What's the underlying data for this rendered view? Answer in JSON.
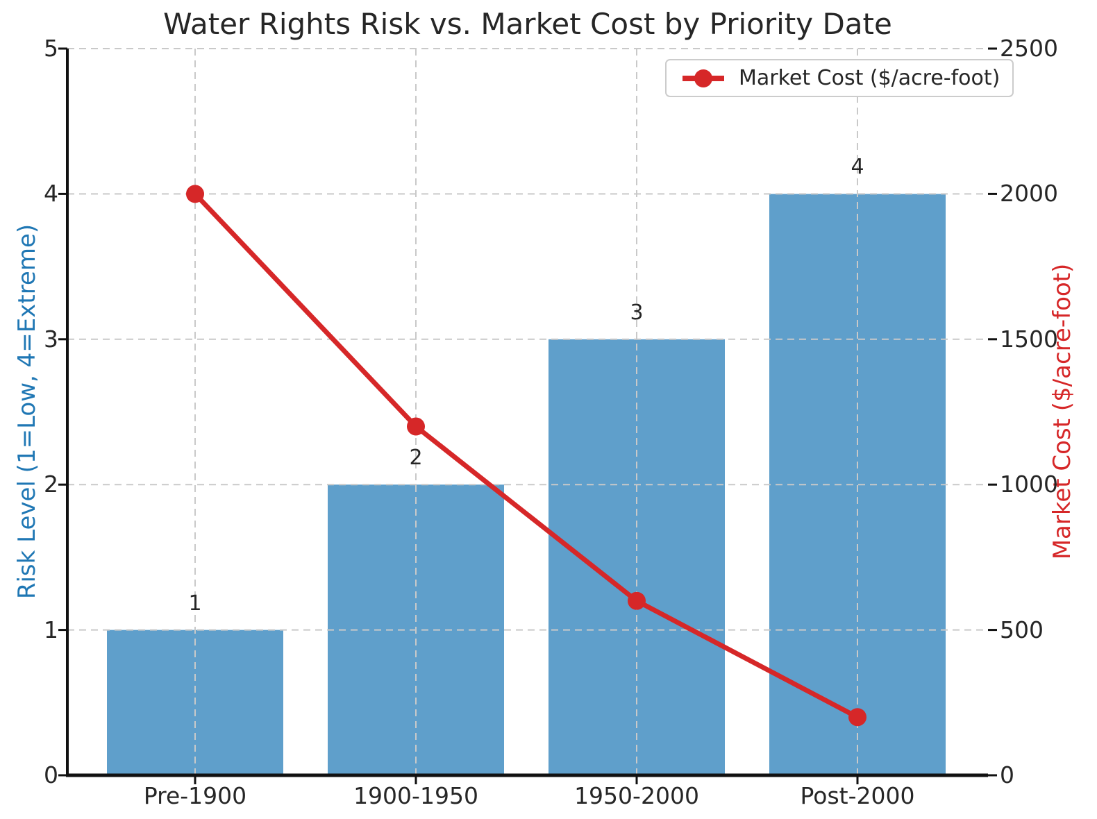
{
  "chart_data": {
    "type": "bar",
    "title": "Water Rights Risk vs. Market Cost by Priority Date",
    "categories": [
      "Pre-1900",
      "1900-1950",
      "1950-2000",
      "Post-2000"
    ],
    "series": [
      {
        "name": "Risk Level",
        "type": "bar",
        "axis": "left",
        "values": [
          1,
          2,
          3,
          4
        ],
        "bar_labels": [
          "1",
          "2",
          "3",
          "4"
        ],
        "color": "#5f9fcb"
      },
      {
        "name": "Market Cost ($/acre-foot)",
        "type": "line",
        "axis": "right",
        "values": [
          2000,
          1200,
          600,
          200
        ],
        "color": "#d62728",
        "marker": "circle"
      }
    ],
    "left_axis": {
      "label": "Risk Level (1=Low, 4=Extreme)",
      "color": "#1f77b4",
      "min": 0,
      "max": 5,
      "ticks": [
        0,
        1,
        2,
        3,
        4,
        5
      ]
    },
    "right_axis": {
      "label": "Market Cost ($/acre-foot)",
      "color": "#d62728",
      "min": 0,
      "max": 2500,
      "ticks": [
        0,
        500,
        1000,
        1500,
        2000,
        2500
      ]
    },
    "legend": {
      "position": "upper right",
      "entries": [
        {
          "label": "Market Cost ($/acre-foot)",
          "color": "#d62728",
          "marker": "line-circle"
        }
      ]
    },
    "grid": {
      "visible": true,
      "style": "dashed",
      "color": "#c9c9c9"
    },
    "text_color": "#262626",
    "spine_color": "#111111"
  }
}
